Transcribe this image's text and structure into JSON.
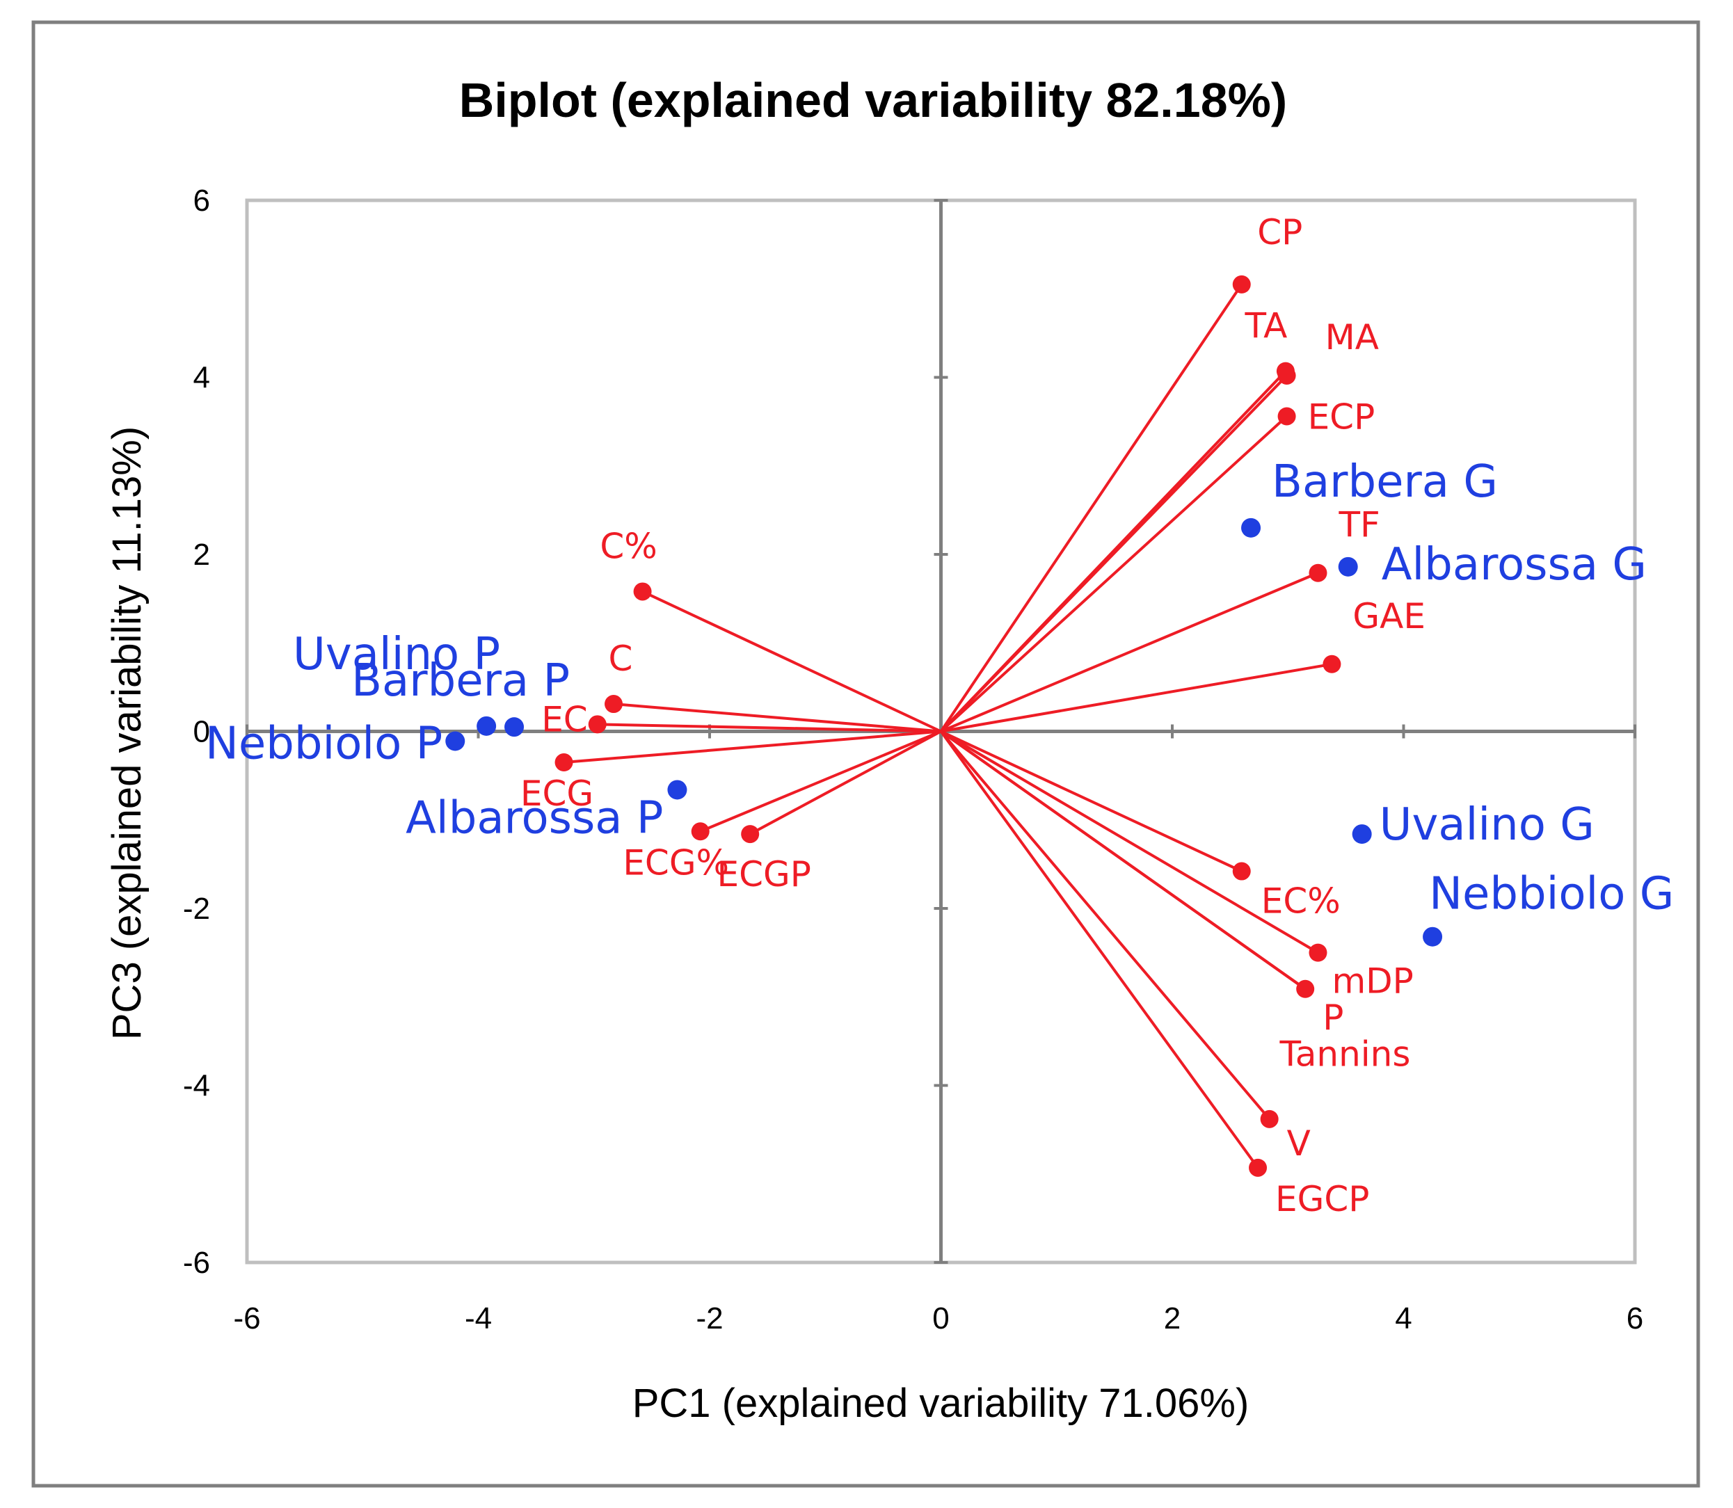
{
  "chart_data": {
    "type": "scatter",
    "subtype": "biplot",
    "title": "Biplot (explained variability 82.18%)",
    "xlabel": "PC1 (explained variability 71.06%)",
    "ylabel": "PC3 (explained variability 11.13%)",
    "xlim": [
      -6,
      6
    ],
    "ylim": [
      -6,
      6
    ],
    "xticks": [
      "-6",
      "-4",
      "-2",
      "0",
      "2",
      "4",
      "6"
    ],
    "yticks": [
      "6",
      "4",
      "2",
      "0",
      "-2",
      "-4",
      "-6"
    ],
    "colors": {
      "variables": "#ee1c25",
      "observations": "#1f3fe0",
      "axes": "#7f7f7f",
      "frame": "#bfbfbf"
    },
    "variables": [
      {
        "name": "CP",
        "x": 2.6,
        "y": 5.05
      },
      {
        "name": "TA",
        "x": 2.98,
        "y": 4.07
      },
      {
        "name": "MA",
        "x": 2.99,
        "y": 4.02
      },
      {
        "name": "ECP",
        "x": 2.99,
        "y": 3.56
      },
      {
        "name": "TF",
        "x": 3.26,
        "y": 1.79
      },
      {
        "name": "GAE",
        "x": 3.38,
        "y": 0.76
      },
      {
        "name": "C%",
        "x": -2.58,
        "y": 1.58
      },
      {
        "name": "C",
        "x": -2.83,
        "y": 0.31
      },
      {
        "name": "EC",
        "x": -2.97,
        "y": 0.08
      },
      {
        "name": "ECG",
        "x": -3.26,
        "y": -0.35
      },
      {
        "name": "ECG%",
        "x": -2.08,
        "y": -1.13
      },
      {
        "name": "ECGP",
        "x": -1.65,
        "y": -1.16
      },
      {
        "name": "EC%",
        "x": 2.6,
        "y": -1.58
      },
      {
        "name": "mDP",
        "x": 3.26,
        "y": -2.5
      },
      {
        "name": "P",
        "x": 3.15,
        "y": -2.91
      },
      {
        "name": "Tannins",
        "x": 3.17,
        "y": -2.93
      },
      {
        "name": "V",
        "x": 2.84,
        "y": -4.38
      },
      {
        "name": "EGCP",
        "x": 2.74,
        "y": -4.93
      }
    ],
    "observations": [
      {
        "name": "Barbera G",
        "x": 2.68,
        "y": 2.3
      },
      {
        "name": "Albarossa G",
        "x": 3.52,
        "y": 1.86
      },
      {
        "name": "Uvalino G",
        "x": 3.64,
        "y": -1.16
      },
      {
        "name": "Nebbiolo G",
        "x": 4.25,
        "y": -2.32
      },
      {
        "name": "Uvalino P",
        "x": -3.93,
        "y": 0.06
      },
      {
        "name": "Barbera P",
        "x": -3.69,
        "y": 0.05
      },
      {
        "name": "Nebbiolo P",
        "x": -4.2,
        "y": -0.11
      },
      {
        "name": "Albarossa P",
        "x": -2.28,
        "y": -0.66
      }
    ]
  }
}
